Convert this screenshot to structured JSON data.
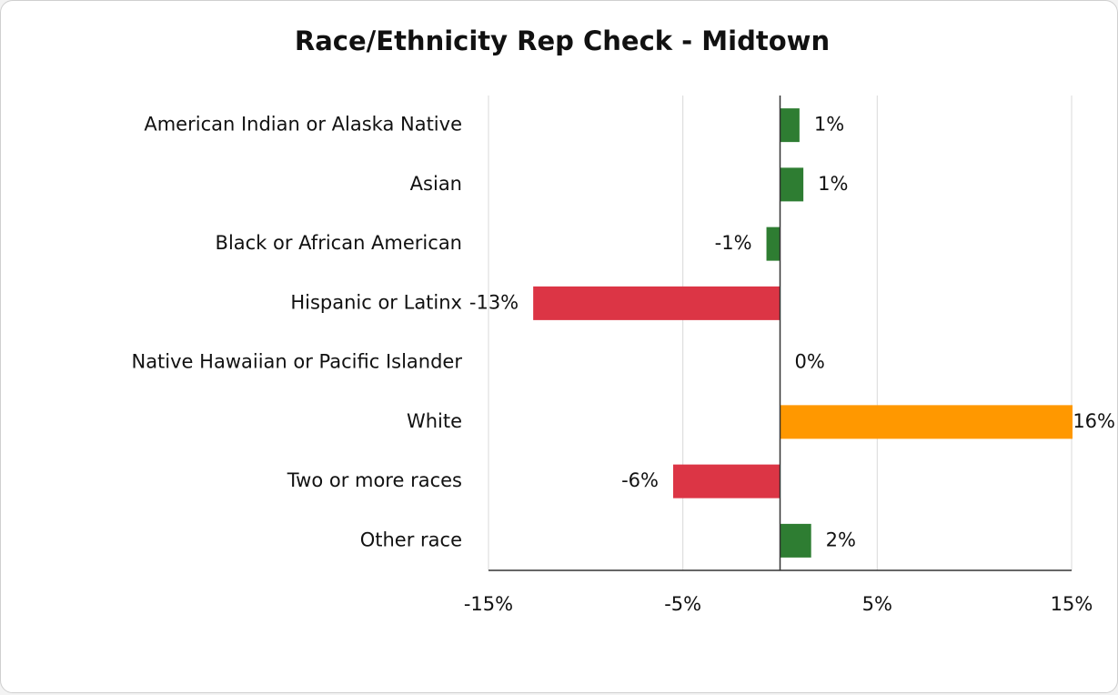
{
  "chart_data": {
    "type": "bar",
    "orientation": "horizontal",
    "title": "Race/Ethnicity Rep Check - Midtown",
    "categories": [
      "American Indian or Alaska Native",
      "Asian",
      "Black or African American",
      "Hispanic or Latinx",
      "Native Hawaiian or Pacific Islander",
      "White",
      "Two or more races",
      "Other race"
    ],
    "values": [
      1.0,
      1.2,
      -0.7,
      -12.7,
      0,
      16,
      -5.5,
      1.6
    ],
    "value_labels": [
      "1%",
      "1%",
      "-1%",
      "-13%",
      "0%",
      "16%",
      "-6%",
      "2%"
    ],
    "colors": [
      "#2e7d32",
      "#2e7d32",
      "#2e7d32",
      "#dc3545",
      "#2e7d32",
      "#ff9800",
      "#dc3545",
      "#2e7d32"
    ],
    "xlim": [
      -15,
      15
    ],
    "xticks": [
      {
        "value": -15,
        "label": "-15%"
      },
      {
        "value": -5,
        "label": "-5%"
      },
      {
        "value": 5,
        "label": "5%"
      },
      {
        "value": 15,
        "label": "15%"
      }
    ],
    "grid": true
  }
}
